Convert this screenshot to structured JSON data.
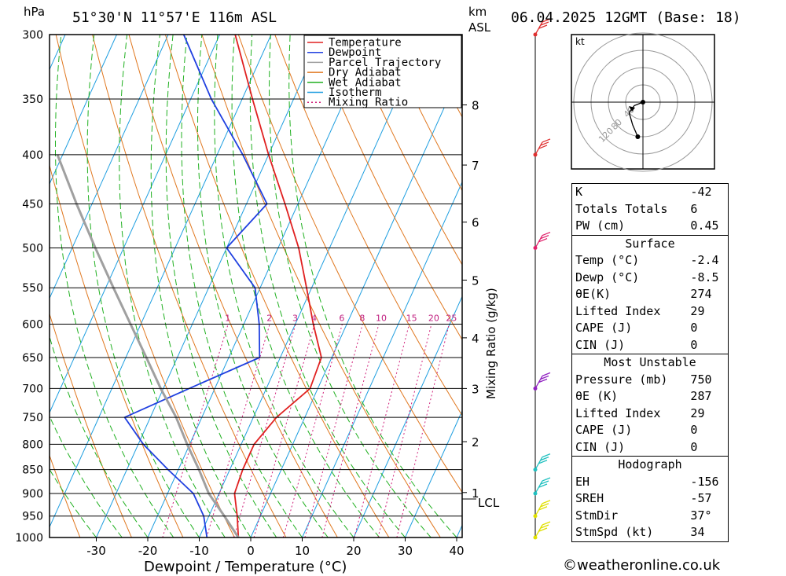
{
  "header": {
    "location": "51°30'N  11°57'E  116m  ASL",
    "datetime": "06.04.2025  12GMT  (Base: 18)",
    "hpa_label": "hPa",
    "km_label": "km",
    "asl_label": "ASL"
  },
  "chart_data": {
    "type": "skew-t",
    "xlabel": "Dewpoint / Temperature (°C)",
    "ylabel_right": "Mixing Ratio (g/kg)",
    "x_ticks": [
      -30,
      -20,
      -10,
      0,
      10,
      20,
      30,
      40
    ],
    "pressure_levels": [
      300,
      350,
      400,
      450,
      500,
      550,
      600,
      650,
      700,
      750,
      800,
      850,
      900,
      950,
      1000
    ],
    "km_ticks": [
      {
        "label": "8",
        "p": 355
      },
      {
        "label": "7",
        "p": 410
      },
      {
        "label": "6",
        "p": 470
      },
      {
        "label": "5",
        "p": 540
      },
      {
        "label": "4",
        "p": 620
      },
      {
        "label": "3",
        "p": 700
      },
      {
        "label": "2",
        "p": 795
      },
      {
        "label": "1",
        "p": 898
      }
    ],
    "lcl_label": "LCL",
    "lcl_pressure": 912,
    "mixing_ratio_labels": [
      "1",
      "2",
      "3",
      "4",
      "6",
      "8",
      "10",
      "15",
      "20",
      "25"
    ],
    "mixing_ratio_values": [
      1,
      2,
      3,
      4,
      6,
      8,
      10,
      15,
      20,
      25
    ],
    "legend": [
      "Temperature",
      "Dewpoint",
      "Parcel Trajectory",
      "Dry Adiabat",
      "Wet Adiabat",
      "Isotherm",
      "Mixing Ratio"
    ],
    "series": [
      {
        "name": "Temperature",
        "color": "#e02020",
        "points": [
          [
            1000,
            -2.4
          ],
          [
            950,
            -4.5
          ],
          [
            900,
            -7
          ],
          [
            850,
            -7.5
          ],
          [
            800,
            -7.5
          ],
          [
            750,
            -5.5
          ],
          [
            700,
            -1.5
          ],
          [
            650,
            -2
          ],
          [
            600,
            -6.5
          ],
          [
            550,
            -11
          ],
          [
            500,
            -16
          ],
          [
            450,
            -22.5
          ],
          [
            400,
            -30
          ],
          [
            350,
            -38
          ],
          [
            300,
            -47
          ]
        ]
      },
      {
        "name": "Dewpoint",
        "color": "#2040e0",
        "points": [
          [
            1000,
            -8.5
          ],
          [
            950,
            -11
          ],
          [
            900,
            -15
          ],
          [
            850,
            -22
          ],
          [
            800,
            -29
          ],
          [
            750,
            -35
          ],
          [
            700,
            -25
          ],
          [
            650,
            -14
          ],
          [
            600,
            -17
          ],
          [
            550,
            -21
          ],
          [
            500,
            -30
          ],
          [
            450,
            -26
          ],
          [
            400,
            -35
          ],
          [
            350,
            -46
          ],
          [
            300,
            -57
          ]
        ]
      },
      {
        "name": "Parcel Trajectory",
        "color": "#a0a0a0",
        "points": [
          [
            1000,
            -2.4
          ],
          [
            950,
            -7
          ],
          [
            900,
            -12
          ],
          [
            850,
            -16
          ],
          [
            800,
            -20.5
          ],
          [
            750,
            -25
          ],
          [
            700,
            -30.5
          ],
          [
            650,
            -36
          ],
          [
            600,
            -42
          ],
          [
            550,
            -48.5
          ],
          [
            500,
            -55.5
          ],
          [
            450,
            -63
          ],
          [
            400,
            -71
          ]
        ]
      }
    ],
    "hodograph": {
      "unit": "kt",
      "ring_labels": [
        "40",
        "80",
        "120"
      ],
      "points": [
        [
          0,
          0
        ],
        [
          -5,
          2
        ],
        [
          -8,
          6
        ],
        [
          -6,
          13
        ],
        [
          -3,
          20
        ]
      ]
    },
    "wind_barbs": [
      {
        "p": 1000,
        "color": "#e0e000"
      },
      {
        "p": 950,
        "color": "#e0e000"
      },
      {
        "p": 900,
        "color": "#20c0c0"
      },
      {
        "p": 850,
        "color": "#20c0c0"
      },
      {
        "p": 700,
        "color": "#9020c0"
      },
      {
        "p": 500,
        "color": "#e0206a"
      },
      {
        "p": 400,
        "color": "#e03030"
      },
      {
        "p": 300,
        "color": "#e03030"
      }
    ]
  },
  "indices": {
    "k_label": "K",
    "k_value": "-42",
    "tt_label": "Totals Totals",
    "tt_value": "6",
    "pw_label": "PW (cm)",
    "pw_value": "0.45",
    "surface_header": "Surface",
    "s_temp_label": "Temp (°C)",
    "s_temp_value": "-2.4",
    "s_dewp_label": "Dewp (°C)",
    "s_dewp_value": "-8.5",
    "s_theta_label": "θE(K)",
    "s_theta_value": "274",
    "s_li_label": "Lifted Index",
    "s_li_value": "29",
    "s_cape_label": "CAPE (J)",
    "s_cape_value": "0",
    "s_cin_label": "CIN (J)",
    "s_cin_value": "0",
    "mu_header": "Most Unstable",
    "mu_pressure_label": "Pressure (mb)",
    "mu_pressure_value": "750",
    "mu_theta_label": "θE (K)",
    "mu_theta_value": "287",
    "mu_li_label": "Lifted Index",
    "mu_li_value": "29",
    "mu_cape_label": "CAPE (J)",
    "mu_cape_value": "0",
    "mu_cin_label": "CIN (J)",
    "mu_cin_value": "0",
    "hodo_header": "Hodograph",
    "eh_label": "EH",
    "eh_value": "-156",
    "sreh_label": "SREH",
    "sreh_value": "-57",
    "stmdir_label": "StmDir",
    "stmdir_value": "37°",
    "stmspd_label": "StmSpd (kt)",
    "stmspd_value": "34"
  },
  "footer": {
    "credit": "©weatheronline.co.uk"
  }
}
